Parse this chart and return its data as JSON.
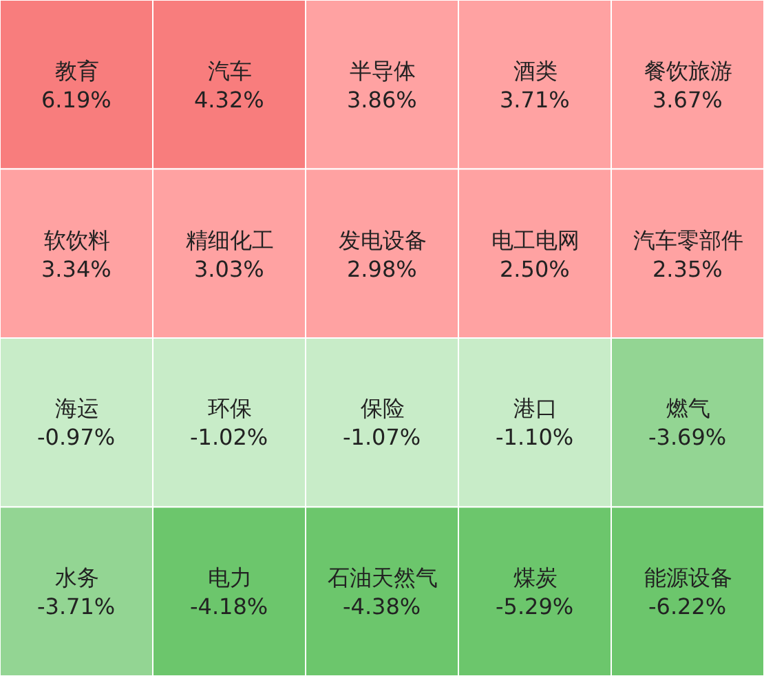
{
  "chart_data": {
    "type": "other",
    "categories": [
      "教育",
      "汽车",
      "半导体",
      "酒类",
      "餐饮旅游",
      "软饮料",
      "精细化工",
      "发电设备",
      "电工电网",
      "汽车零部件",
      "海运",
      "环保",
      "保险",
      "港口",
      "燃气",
      "水务",
      "电力",
      "石油天然气",
      "煤炭",
      "能源设备"
    ],
    "values": [
      6.19,
      4.32,
      3.86,
      3.71,
      3.67,
      3.34,
      3.03,
      2.98,
      2.5,
      2.35,
      -0.97,
      -1.02,
      -1.07,
      -1.1,
      -3.69,
      -3.71,
      -4.18,
      -4.38,
      -5.29,
      -6.22
    ],
    "value_labels": [
      "6.19%",
      "4.32%",
      "3.86%",
      "3.71%",
      "3.67%",
      "3.34%",
      "3.03%",
      "2.98%",
      "2.50%",
      "2.35%",
      "-0.97%",
      "-1.02%",
      "-1.07%",
      "-1.10%",
      "-3.69%",
      "-3.71%",
      "-4.18%",
      "-4.38%",
      "-5.29%",
      "-6.22%"
    ],
    "colors": [
      "#f87d7d",
      "#f87d7d",
      "#ffa2a2",
      "#ffa2a2",
      "#ffa2a2",
      "#ffa2a2",
      "#ffa2a2",
      "#ffa2a2",
      "#ffa2a2",
      "#ffa2a2",
      "#c8ecc8",
      "#c8ecc8",
      "#c8ecc8",
      "#c8ecc8",
      "#93d593",
      "#93d593",
      "#6cc66c",
      "#6cc66c",
      "#6cc66c",
      "#6cc66c"
    ]
  }
}
